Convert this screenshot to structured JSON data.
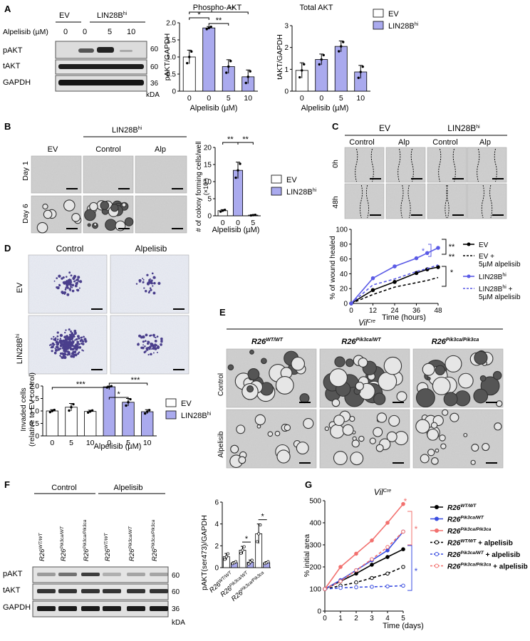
{
  "panel_labels": [
    "A",
    "B",
    "C",
    "D",
    "E",
    "F",
    "G"
  ],
  "colors": {
    "ev": "#ffffff",
    "lin": "#aaaaee",
    "lin_line": "#5a5ae6",
    "pik_het": "#3a4de0",
    "pik_homo": "#f2706e",
    "black": "#000000",
    "gray_bg": "#d4d4d4"
  },
  "a": {
    "groups": [
      "EV",
      "LIN28B",
      "hi"
    ],
    "alpelisib_row": "Alpelisib (µM)",
    "doses": [
      "0",
      "0",
      "5",
      "10"
    ],
    "bands": [
      "pAKT",
      "tAKT",
      "GAPDH"
    ],
    "kda": [
      "60",
      "60",
      "36"
    ],
    "kda_label": "kDA",
    "phospho_title": "Phospho-AKT",
    "phospho_ylabel": "pAKT/GAPDH",
    "total_title": "Total AKT",
    "total_ylabel": "tAKT/GAPDH",
    "xlabel": "Alpelisib (µM)",
    "legend": [
      "EV",
      "LIN28B",
      "hi"
    ],
    "sig": [
      "*",
      "**",
      "**"
    ]
  },
  "b": {
    "cols": [
      "EV",
      "Control",
      "Alp"
    ],
    "header": [
      "LIN28B",
      "hi"
    ],
    "rows": [
      "Day 1",
      "Day 6"
    ],
    "ylabel": "# of colony forming cells/well",
    "yunit": "(×10³)",
    "xlabel": "Alpelisib (µM)",
    "legend": [
      "EV",
      "LIN28B",
      "hi"
    ],
    "sig": [
      "**",
      "**"
    ]
  },
  "c": {
    "headers": [
      "EV",
      "LIN28B",
      "hi"
    ],
    "cols": [
      "Control",
      "Alp",
      "Control",
      "Alp"
    ],
    "rows": [
      "0h",
      "48h"
    ],
    "ylabel": "% of wound healed",
    "xlabel": "Time (hours)",
    "legend": [
      "EV",
      "EV +",
      "5µM alpelisib",
      "LIN28B",
      "hi",
      "LIN28B",
      "hi",
      " +",
      "5µM alpelisib"
    ],
    "sig": [
      "**",
      "**",
      "*",
      "*"
    ]
  },
  "d": {
    "cols": [
      "Control",
      "Alpelisib"
    ],
    "rows": [
      "EV",
      "LIN28B",
      "hi"
    ],
    "ylabel": "Invaded cells",
    "ylabel2": "(relative to EV control)",
    "xlabel": "Alpelisib (µM)",
    "legend": [
      "EV",
      "LIN28B",
      "hi"
    ],
    "sig": [
      "***",
      "*",
      "***"
    ]
  },
  "e": {
    "title": "Vil",
    "title_sup": "Cre",
    "cols": [
      {
        "base": "R26",
        "sup": "WT/WT"
      },
      {
        "base": "R26",
        "sup": "Pik3ca/WT"
      },
      {
        "base": "R26",
        "sup": "Pik3ca/Pik3ca"
      }
    ],
    "rows": [
      "Control",
      "Alpelisib"
    ]
  },
  "f": {
    "groups": [
      "Control",
      "Alpelisib"
    ],
    "lanes": [
      {
        "base": "R26",
        "sup": "WT/WT"
      },
      {
        "base": "R26",
        "sup": "Pik3ca/WT"
      },
      {
        "base": "R26",
        "sup": "Pik3ca/Pik3ca"
      },
      {
        "base": "R26",
        "sup": "WT/WT"
      },
      {
        "base": "R26",
        "sup": "Pik3ca/WT"
      },
      {
        "base": "R26",
        "sup": "Pik3ca/Pik3ca"
      }
    ],
    "bands": [
      "pAKT",
      "tAKT",
      "GAPDH"
    ],
    "kda": [
      "60",
      "60",
      "36"
    ],
    "kda_label": "kDA",
    "ylabel": "pAKT(ser473)/GAPDH",
    "sig": [
      "*",
      "*"
    ]
  },
  "g": {
    "title": "Vil",
    "title_sup": "Cre",
    "ylabel": "% initial area",
    "xlabel": "Time (days)",
    "legend": [
      {
        "base": "R26",
        "sup": "WT/WT",
        "suffix": ""
      },
      {
        "base": "R26",
        "sup": "Pik3ca/WT",
        "suffix": ""
      },
      {
        "base": "R26",
        "sup": "Pik3ca/Pik3ca",
        "suffix": ""
      },
      {
        "base": "R26",
        "sup": "WT/WT",
        "suffix": " + alpelisib"
      },
      {
        "base": "R26",
        "sup": "Pik3ca/WT",
        "suffix": " + alpelisib"
      },
      {
        "base": "R26",
        "sup": "Pik3ca/Pik3ca",
        "suffix": " + alpelisib"
      }
    ],
    "sig": [
      "*",
      "*",
      "*"
    ]
  },
  "chart_data": [
    {
      "id": "A-phospho",
      "type": "bar",
      "title": "Phospho-AKT",
      "categories": [
        "0",
        "0",
        "5",
        "10"
      ],
      "ylabel": "pAKT/GAPDH",
      "xlabel": "Alpelisib (µM)",
      "ylim": [
        0,
        2.0
      ],
      "yticks": [
        0,
        0.5,
        1.0,
        1.5,
        2.0
      ],
      "values": [
        1.0,
        1.85,
        0.72,
        0.42
      ],
      "errors": [
        0.2,
        0.04,
        0.2,
        0.2
      ],
      "groups": [
        "EV",
        "LIN28B",
        "LIN28B",
        "LIN28B"
      ]
    },
    {
      "id": "A-total",
      "type": "bar",
      "title": "Total AKT",
      "categories": [
        "0",
        "0",
        "5",
        "10"
      ],
      "ylabel": "tAKT/GAPDH",
      "xlabel": "Alpelisib (µM)",
      "ylim": [
        0,
        3
      ],
      "yticks": [
        0,
        1,
        2,
        3
      ],
      "values": [
        0.95,
        1.45,
        2.05,
        0.88
      ],
      "errors": [
        0.35,
        0.25,
        0.25,
        0.3
      ],
      "groups": [
        "EV",
        "LIN28B",
        "LIN28B",
        "LIN28B"
      ]
    },
    {
      "id": "B",
      "type": "bar",
      "categories": [
        "0",
        "0",
        "5"
      ],
      "ylabel": "# of colony forming cells/well",
      "xlabel": "Alpelisib (µM)",
      "ylim": [
        0,
        20
      ],
      "yticks": [
        0,
        5,
        10,
        15,
        20
      ],
      "values": [
        1.5,
        13.3,
        0.2
      ],
      "errors": [
        0.3,
        2.4,
        0.1
      ],
      "groups": [
        "EV",
        "LIN28B",
        "LIN28B"
      ]
    },
    {
      "id": "C",
      "type": "line",
      "x": [
        0,
        12,
        24,
        36,
        42,
        48
      ],
      "xticks": [
        0,
        12,
        24,
        36,
        48
      ],
      "ylabel": "% of wound healed",
      "xlabel": "Time (hours)",
      "ylim": [
        0,
        100
      ],
      "yticks": [
        0,
        20,
        40,
        60,
        80,
        100
      ],
      "series": [
        {
          "name": "EV",
          "values": [
            0,
            18,
            29,
            41,
            46,
            49
          ]
        },
        {
          "name": "EV + 5µM alpelisib",
          "values": [
            0,
            12,
            22,
            28,
            31,
            35
          ]
        },
        {
          "name": "LIN28B hi",
          "values": [
            0,
            34,
            50,
            61,
            68,
            75
          ]
        },
        {
          "name": "LIN28B hi + 5µM alpelisib",
          "values": [
            0,
            25,
            33,
            43,
            47,
            52
          ]
        }
      ]
    },
    {
      "id": "D",
      "type": "bar",
      "categories": [
        "0",
        "5",
        "10",
        "0",
        "5",
        "10"
      ],
      "ylabel": "Invaded cells (relative to EV control)",
      "xlabel": "Alpelisib (µM)",
      "ylim": [
        0,
        2.0
      ],
      "yticks": [
        0,
        0.5,
        1.0,
        1.5,
        2.0
      ],
      "values": [
        1.0,
        1.15,
        0.98,
        1.97,
        1.35,
        0.97
      ],
      "errors": [
        0.05,
        0.15,
        0.05,
        0.03,
        0.15,
        0.08
      ],
      "groups": [
        "EV",
        "EV",
        "EV",
        "LIN28B",
        "LIN28B",
        "LIN28B"
      ]
    },
    {
      "id": "F",
      "type": "bar",
      "categories": [
        "R26 WT/WT",
        "R26 Pik3ca/WT",
        "R26 Pik3ca/Pik3ca"
      ],
      "ylabel": "pAKT(ser473)/GAPDH",
      "ylim": [
        0,
        6
      ],
      "yticks": [
        0,
        2,
        4,
        6
      ],
      "series": [
        {
          "name": "Control",
          "values": [
            1.0,
            1.6,
            3.1
          ],
          "errors": [
            0.3,
            0.35,
            0.9
          ]
        },
        {
          "name": "Alpelisib",
          "values": [
            0.45,
            0.5,
            0.45
          ],
          "errors": [
            0.1,
            0.2,
            0.1
          ]
        }
      ]
    },
    {
      "id": "G",
      "type": "line",
      "x": [
        0,
        1,
        2,
        3,
        4,
        5
      ],
      "xticks": [
        0,
        1,
        2,
        3,
        4,
        5
      ],
      "ylabel": "% initial area",
      "xlabel": "Time (days)",
      "ylim": [
        0,
        500
      ],
      "yticks": [
        0,
        100,
        200,
        300,
        400,
        500
      ],
      "series": [
        {
          "name": "R26 WT/WT",
          "values": [
            100,
            135,
            170,
            210,
            245,
            280
          ]
        },
        {
          "name": "R26 Pik3ca/WT",
          "values": [
            100,
            140,
            185,
            230,
            275,
            360
          ]
        },
        {
          "name": "R26 Pik3ca/Pik3ca",
          "values": [
            100,
            200,
            260,
            320,
            400,
            485
          ]
        },
        {
          "name": "R26 WT/WT + alpelisib",
          "values": [
            100,
            115,
            130,
            150,
            170,
            200
          ]
        },
        {
          "name": "R26 Pik3ca/WT + alpelisib",
          "values": [
            100,
            105,
            108,
            110,
            112,
            115
          ]
        },
        {
          "name": "R26 Pik3ca/Pik3ca + alpelisib",
          "values": [
            100,
            135,
            185,
            235,
            290,
            360
          ]
        }
      ]
    }
  ]
}
